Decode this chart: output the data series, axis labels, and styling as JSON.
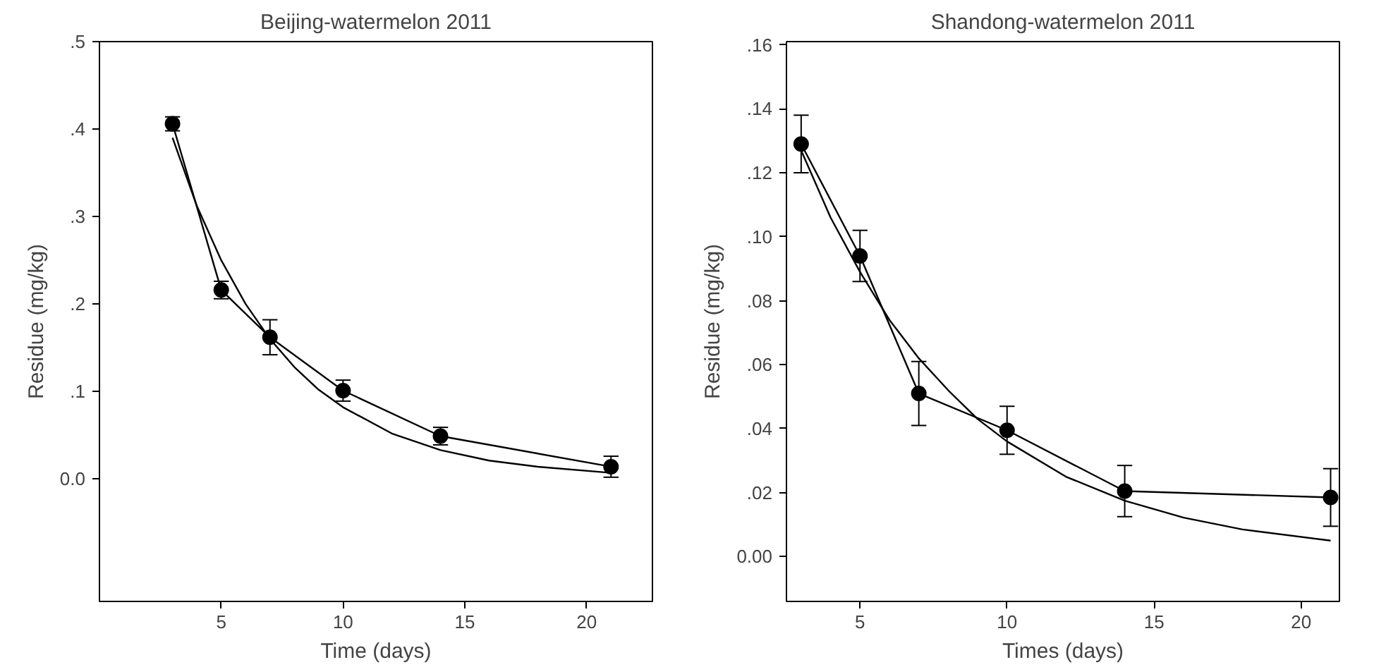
{
  "chart_data": [
    {
      "type": "line",
      "title": "Beijing-watermelon 2011",
      "xlabel": "Time (days)",
      "ylabel": "Residue (mg/kg)",
      "xlim": [
        0,
        22.7
      ],
      "ylim": [
        -0.14,
        0.5
      ],
      "xticks": [
        5,
        10,
        15,
        20
      ],
      "yticks": [
        {
          "value": 0,
          "label": "0.0"
        },
        {
          "value": 0.1,
          "label": ".1"
        },
        {
          "value": 0.2,
          "label": ".2"
        },
        {
          "value": 0.3,
          "label": ".3"
        },
        {
          "value": 0.4,
          "label": ".4"
        },
        {
          "value": 0.5,
          "label": ".5"
        }
      ],
      "grid": false,
      "series": [
        {
          "color": "#000000",
          "marker": "circle",
          "x": [
            3,
            5,
            7,
            10,
            14,
            21
          ],
          "values": [
            0.406,
            0.216,
            0.162,
            0.101,
            0.049,
            0.014
          ],
          "errors": [
            0.008,
            0.01,
            0.02,
            0.012,
            0.01,
            0.012
          ]
        },
        {
          "color": "#000000",
          "marker": "none",
          "x": [
            3,
            4,
            5,
            6,
            7,
            8,
            9,
            10,
            12,
            14,
            16,
            18,
            21
          ],
          "values": [
            0.39,
            0.312,
            0.25,
            0.2,
            0.16,
            0.128,
            0.102,
            0.082,
            0.052,
            0.033,
            0.021,
            0.014,
            0.007
          ]
        }
      ]
    },
    {
      "type": "line",
      "title": "Shandong-watermelon 2011",
      "xlabel": "Times (days)",
      "ylabel": "Residue (mg/kg)",
      "xlim": [
        2.5,
        21.3
      ],
      "ylim": [
        -0.014,
        0.161
      ],
      "xticks": [
        5,
        10,
        15,
        20
      ],
      "yticks": [
        {
          "value": 0,
          "label": "0.00"
        },
        {
          "value": 0.02,
          "label": ".02"
        },
        {
          "value": 0.04,
          "label": ".04"
        },
        {
          "value": 0.06,
          "label": ".06"
        },
        {
          "value": 0.08,
          "label": ".08"
        },
        {
          "value": 0.1,
          "label": ".10"
        },
        {
          "value": 0.12,
          "label": ".12"
        },
        {
          "value": 0.14,
          "label": ".14"
        },
        {
          "value": 0.16,
          "label": ".16"
        }
      ],
      "grid": false,
      "series": [
        {
          "color": "#000000",
          "marker": "circle",
          "x": [
            3,
            5,
            7,
            10,
            14,
            21
          ],
          "values": [
            0.129,
            0.094,
            0.051,
            0.0395,
            0.0205,
            0.0185
          ],
          "errors": [
            0.009,
            0.008,
            0.01,
            0.0075,
            0.008,
            0.009
          ]
        },
        {
          "color": "#000000",
          "marker": "none",
          "x": [
            3,
            4,
            5,
            6,
            7,
            8,
            9,
            10,
            12,
            14,
            16,
            18,
            21
          ],
          "values": [
            0.127,
            0.106,
            0.089,
            0.074,
            0.062,
            0.052,
            0.043,
            0.036,
            0.025,
            0.0175,
            0.0122,
            0.0085,
            0.005
          ]
        }
      ]
    }
  ]
}
